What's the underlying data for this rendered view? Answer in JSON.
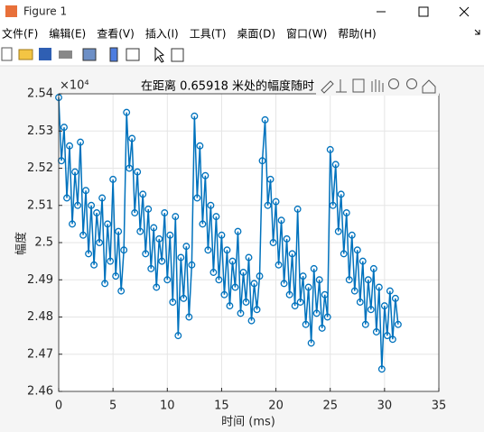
{
  "window": {
    "title": "Figure 1",
    "menu": [
      "文件(F)",
      "编辑(E)",
      "查看(V)",
      "插入(I)",
      "工具(T)",
      "桌面(D)",
      "窗口(W)",
      "帮助(H)"
    ]
  },
  "chart_data": {
    "type": "line",
    "title": "在距离 0.65918 米处的幅度随时",
    "x_label": "时间 (ms)",
    "y_label": "幅度",
    "y_exponent": "×10⁴",
    "color": "#0072bd",
    "marker": "circle",
    "grid": true,
    "xlim": [
      0,
      35
    ],
    "xticks": [
      0,
      5,
      10,
      15,
      20,
      25,
      30,
      35
    ],
    "ylim": [
      2.46,
      2.54
    ],
    "yticks": [
      2.46,
      2.47,
      2.48,
      2.49,
      2.5,
      2.51,
      2.52,
      2.53,
      2.54
    ],
    "x": [
      0,
      0.25,
      0.5,
      0.75,
      1,
      1.25,
      1.5,
      1.75,
      2,
      2.25,
      2.5,
      2.75,
      3,
      3.25,
      3.5,
      3.75,
      4,
      4.25,
      4.5,
      4.75,
      5,
      5.25,
      5.5,
      5.75,
      6,
      6.25,
      6.5,
      6.75,
      7,
      7.25,
      7.5,
      7.75,
      8,
      8.25,
      8.5,
      8.75,
      9,
      9.25,
      9.5,
      9.75,
      10,
      10.25,
      10.5,
      10.75,
      11,
      11.25,
      11.5,
      11.75,
      12,
      12.25,
      12.5,
      12.75,
      13,
      13.25,
      13.5,
      13.75,
      14,
      14.25,
      14.5,
      14.75,
      15,
      15.25,
      15.5,
      15.75,
      16,
      16.25,
      16.5,
      16.75,
      17,
      17.25,
      17.5,
      17.75,
      18,
      18.25,
      18.5,
      18.75,
      19,
      19.25,
      19.5,
      19.75,
      20,
      20.25,
      20.5,
      20.75,
      21,
      21.25,
      21.5,
      21.75,
      22,
      22.25,
      22.5,
      22.75,
      23,
      23.25,
      23.5,
      23.75,
      24,
      24.25,
      24.5,
      24.75,
      25,
      25.25,
      25.5,
      25.75,
      26,
      26.25,
      26.5,
      26.75,
      27,
      27.25,
      27.5,
      27.75,
      28,
      28.25,
      28.5,
      28.75,
      29,
      29.25,
      29.5,
      29.75,
      30,
      30.25,
      30.5,
      30.75,
      31,
      31.25
    ],
    "values": [
      2.539,
      2.522,
      2.531,
      2.512,
      2.526,
      2.505,
      2.519,
      2.51,
      2.527,
      2.502,
      2.514,
      2.497,
      2.51,
      2.494,
      2.508,
      2.5,
      2.512,
      2.489,
      2.505,
      2.495,
      2.517,
      2.491,
      2.503,
      2.487,
      2.498,
      2.535,
      2.52,
      2.528,
      2.508,
      2.519,
      2.503,
      2.513,
      2.497,
      2.509,
      2.493,
      2.504,
      2.488,
      2.501,
      2.495,
      2.508,
      2.49,
      2.502,
      2.484,
      2.507,
      2.475,
      2.496,
      2.485,
      2.499,
      2.48,
      2.494,
      2.534,
      2.512,
      2.526,
      2.505,
      2.518,
      2.498,
      2.51,
      2.492,
      2.507,
      2.49,
      2.502,
      2.486,
      2.498,
      2.483,
      2.495,
      2.488,
      2.503,
      2.481,
      2.492,
      2.484,
      2.496,
      2.479,
      2.489,
      2.482,
      2.491,
      2.522,
      2.533,
      2.51,
      2.517,
      2.5,
      2.511,
      2.494,
      2.506,
      2.489,
      2.501,
      2.486,
      2.497,
      2.483,
      2.509,
      2.484,
      2.491,
      2.478,
      2.488,
      2.473,
      2.493,
      2.481,
      2.49,
      2.477,
      2.486,
      2.48,
      2.525,
      2.51,
      2.521,
      2.503,
      2.513,
      2.497,
      2.508,
      2.49,
      2.502,
      2.487,
      2.498,
      2.484,
      2.495,
      2.478,
      2.49,
      2.482,
      2.493,
      2.476,
      2.488,
      2.466,
      2.483,
      2.475,
      2.487,
      2.474,
      2.485,
      2.478
    ]
  }
}
